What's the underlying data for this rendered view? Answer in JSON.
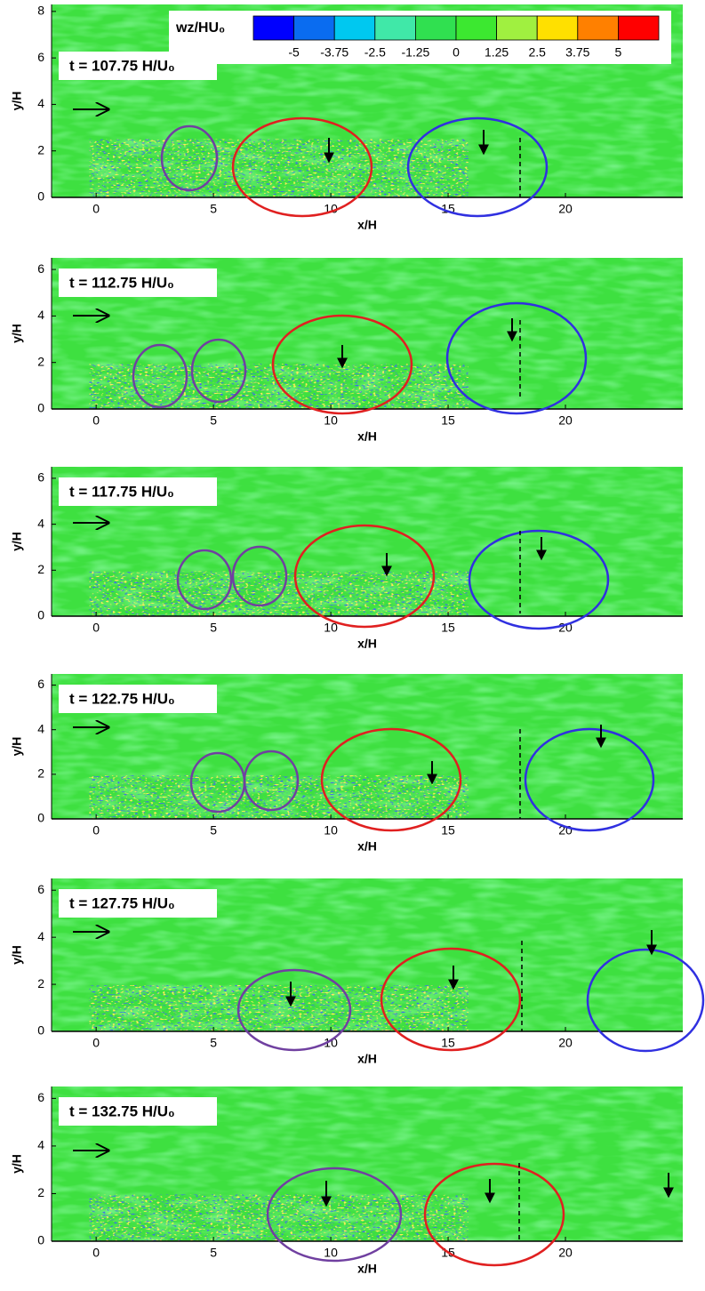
{
  "chart_data": [
    {
      "type": "contour",
      "title": "t = 107.75 H/U₀",
      "xlabel": "x/H",
      "ylabel": "y/H",
      "xlim": [
        -1.9,
        25
      ],
      "xticks": [
        0,
        5,
        10,
        15,
        20
      ],
      "ylim": [
        0,
        8.3
      ],
      "yticks": [
        0,
        2,
        4,
        6,
        8
      ],
      "colorbar": {
        "label": "wz/HU₀",
        "ticks": [
          -5,
          -3.75,
          -2.5,
          -1.25,
          0,
          1.25,
          2.5,
          3.75,
          5
        ],
        "colors": [
          "#0000ff",
          "#0a6cf0",
          "#00c8f0",
          "#40e8a8",
          "#30e050",
          "#3ce830",
          "#a0f040",
          "#ffe000",
          "#ff8000",
          "#ff0000"
        ]
      }
    },
    {
      "type": "contour",
      "title": "t = 112.75 H/U₀",
      "xlabel": "x/H",
      "ylabel": "y/H",
      "xlim": [
        -1.9,
        25
      ],
      "xticks": [
        0,
        5,
        10,
        15,
        20
      ],
      "ylim": [
        0,
        6.5
      ],
      "yticks": [
        0,
        2,
        4,
        6
      ]
    },
    {
      "type": "contour",
      "title": "t = 117.75 H/U₀",
      "xlabel": "x/H",
      "ylabel": "y/H",
      "xlim": [
        -1.9,
        25
      ],
      "xticks": [
        0,
        5,
        10,
        15,
        20
      ],
      "ylim": [
        0,
        6.5
      ],
      "yticks": [
        0,
        2,
        4,
        6
      ]
    },
    {
      "type": "contour",
      "title": "t = 122.75 H/U₀",
      "xlabel": "x/H",
      "ylabel": "y/H",
      "xlim": [
        -1.9,
        25
      ],
      "xticks": [
        0,
        5,
        10,
        15,
        20
      ],
      "ylim": [
        0,
        6.5
      ],
      "yticks": [
        0,
        2,
        4,
        6
      ]
    },
    {
      "type": "contour",
      "title": "t = 127.75 H/U₀",
      "xlabel": "x/H",
      "ylabel": "y/H",
      "xlim": [
        -1.9,
        25
      ],
      "xticks": [
        0,
        5,
        10,
        15,
        20
      ],
      "ylim": [
        0,
        6.5
      ],
      "yticks": [
        0,
        2,
        4,
        6
      ]
    },
    {
      "type": "contour",
      "title": "t = 132.75 H/U₀",
      "xlabel": "x/H",
      "ylabel": "y/H",
      "xlim": [
        -1.9,
        25
      ],
      "xticks": [
        0,
        5,
        10,
        15,
        20
      ],
      "ylim": [
        0,
        6.5
      ],
      "yticks": [
        0,
        2,
        4,
        6
      ]
    }
  ]
}
